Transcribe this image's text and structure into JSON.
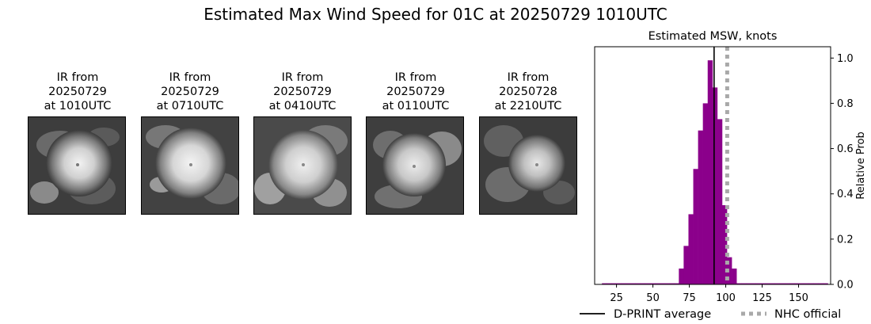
{
  "suptitle": "Estimated Max Wind Speed for 01C at 20250729 1010UTC",
  "thumbnails": [
    {
      "line1": "IR from",
      "line2": "20250729",
      "line3": "at 1010UTC"
    },
    {
      "line1": "IR from",
      "line2": "20250729",
      "line3": "at 0710UTC"
    },
    {
      "line1": "IR from",
      "line2": "20250729",
      "line3": "at 0410UTC"
    },
    {
      "line1": "IR from",
      "line2": "20250729",
      "line3": "at 0110UTC"
    },
    {
      "line1": "IR from",
      "line2": "20250728",
      "line3": "at 2210UTC"
    }
  ],
  "chart_data": {
    "type": "bar",
    "title": "Estimated MSW, knots",
    "xlabel": "",
    "ylabel": "Relative Prob",
    "xlim": [
      10,
      172
    ],
    "ylim": [
      0,
      1.05
    ],
    "xticks": [
      25,
      50,
      75,
      100,
      125,
      150
    ],
    "yticks": [
      0.0,
      0.2,
      0.4,
      0.6,
      0.8,
      1.0
    ],
    "ytick_labels": [
      "0.0",
      "0.2",
      "0.4",
      "0.6",
      "0.8",
      "1.0"
    ],
    "y_axis_side": "right",
    "bin_width": 3.3,
    "bin_left_edges": [
      15,
      18.3,
      21.6,
      24.9,
      28.2,
      31.5,
      34.8,
      38.1,
      41.4,
      44.7,
      48.0,
      51.3,
      54.6,
      57.9,
      61.2,
      64.5,
      67.8,
      71.1,
      74.4,
      77.7,
      81.0,
      84.3,
      87.6,
      90.9,
      94.2,
      97.5,
      100.8,
      104.1,
      107.4,
      110.7,
      114.0,
      117.3,
      120.6,
      123.9,
      127.2,
      130.5,
      133.8,
      137.1,
      140.4,
      143.7,
      147.0,
      150.3,
      153.6,
      156.9,
      160.2,
      163.5,
      166.8
    ],
    "values": [
      0.005,
      0.005,
      0.005,
      0.005,
      0.005,
      0.005,
      0.005,
      0.005,
      0.005,
      0.005,
      0.005,
      0.005,
      0.005,
      0.005,
      0.005,
      0.005,
      0.07,
      0.17,
      0.31,
      0.51,
      0.68,
      0.8,
      0.99,
      0.87,
      0.73,
      0.35,
      0.12,
      0.07,
      0.005,
      0.005,
      0.005,
      0.005,
      0.005,
      0.005,
      0.005,
      0.005,
      0.005,
      0.005,
      0.005,
      0.005,
      0.005,
      0.005,
      0.005,
      0.005,
      0.005,
      0.005,
      0.005
    ],
    "bar_color": "#8b008b",
    "vlines": [
      {
        "name": "D-PRINT average",
        "x": 92,
        "color": "#000000",
        "style": "solid"
      },
      {
        "name": "NHC official",
        "x": 101,
        "color": "#a9a9a9",
        "style": "dotted"
      }
    ],
    "legend": {
      "placement": "bottom",
      "entries": [
        "D-PRINT average",
        "NHC official"
      ]
    }
  }
}
